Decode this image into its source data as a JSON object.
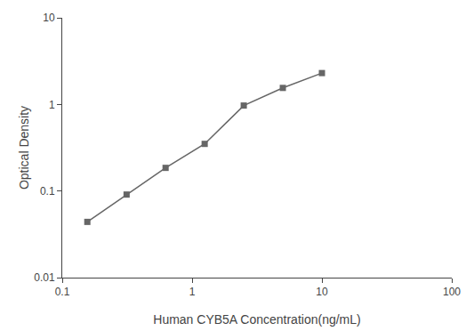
{
  "chart_data": {
    "type": "line",
    "x": [
      0.156,
      0.313,
      0.625,
      1.25,
      2.5,
      5.0,
      10.0
    ],
    "values": [
      0.044,
      0.091,
      0.185,
      0.35,
      0.97,
      1.55,
      2.3
    ],
    "xlabel": "Human CYB5A Concentration(ng/mL)",
    "ylabel": "Optical Density",
    "xlim": [
      0.1,
      100
    ],
    "ylim": [
      0.01,
      10
    ],
    "xticks": [
      0.1,
      1,
      10,
      100
    ],
    "yticks": [
      0.01,
      0.1,
      1,
      10
    ],
    "log": true,
    "grid": false,
    "color": "#666666",
    "marker": "square"
  }
}
